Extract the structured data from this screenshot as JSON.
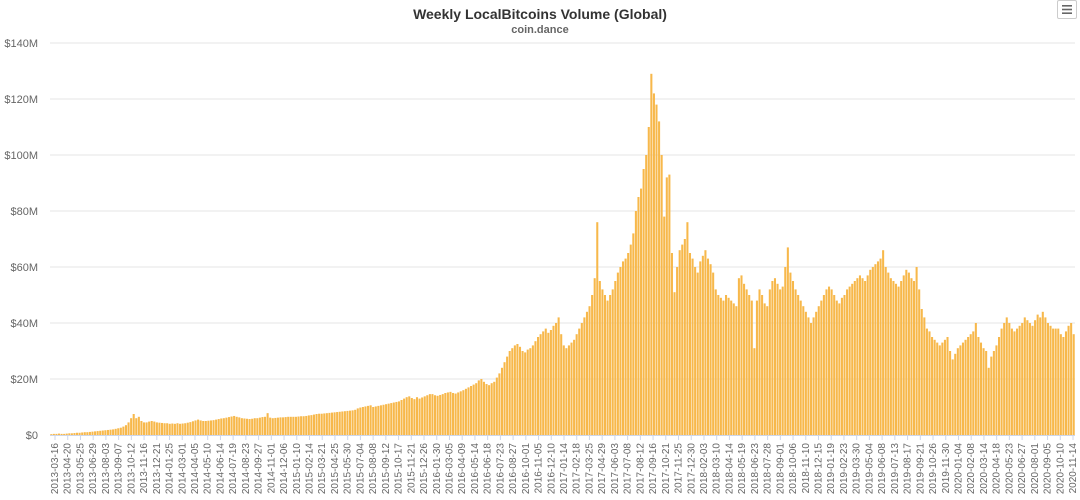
{
  "chart_data": {
    "type": "bar",
    "title": "Weekly LocalBitcoins Volume (Global)",
    "subtitle": "coin.dance",
    "xlabel": "",
    "ylabel": "",
    "ylim": [
      0,
      140000000
    ],
    "y_ticks": [
      "$0",
      "$20M",
      "$40M",
      "$60M",
      "$80M",
      "$100M",
      "$120M",
      "$140M"
    ],
    "grid": true,
    "legend": "none",
    "bar_color": "#f7b84b",
    "x_tick_labels": [
      "2013-03-16",
      "2013-04-20",
      "2013-05-25",
      "2013-06-29",
      "2013-08-03",
      "2013-09-07",
      "2013-10-12",
      "2013-11-16",
      "2013-12-21",
      "2014-01-25",
      "2014-03-01",
      "2014-04-05",
      "2014-05-10",
      "2014-06-14",
      "2014-07-19",
      "2014-08-23",
      "2014-09-27",
      "2014-11-01",
      "2014-12-06",
      "2015-01-10",
      "2015-02-14",
      "2015-03-21",
      "2015-04-25",
      "2015-05-30",
      "2015-07-04",
      "2015-08-08",
      "2015-09-12",
      "2015-10-17",
      "2015-11-21",
      "2015-12-26",
      "2016-01-30",
      "2016-03-05",
      "2016-04-09",
      "2016-05-14",
      "2016-06-18",
      "2016-07-23",
      "2016-08-27",
      "2016-10-01",
      "2016-11-05",
      "2016-12-10",
      "2017-01-14",
      "2017-02-18",
      "2017-03-25",
      "2017-04-29",
      "2017-06-03",
      "2017-07-08",
      "2017-08-12",
      "2017-09-16",
      "2017-10-21",
      "2017-11-25",
      "2017-12-30",
      "2018-02-03",
      "2018-03-10",
      "2018-04-14",
      "2018-05-19",
      "2018-06-23",
      "2018-07-28",
      "2018-09-01",
      "2018-10-06",
      "2018-11-10",
      "2018-12-15",
      "2019-01-19",
      "2019-02-23",
      "2019-03-30",
      "2019-05-04",
      "2019-06-08",
      "2019-07-13",
      "2019-08-17",
      "2019-09-21",
      "2019-10-26",
      "2019-11-30",
      "2020-01-04",
      "2020-02-08",
      "2020-03-14",
      "2020-04-18",
      "2020-05-23",
      "2020-06-27",
      "2020-08-01",
      "2020-09-05",
      "2020-10-10",
      "2020-11-14"
    ],
    "weekly_values_millions": [
      0.3,
      0.4,
      0.4,
      0.5,
      0.4,
      0.4,
      0.5,
      0.6,
      0.6,
      0.7,
      0.8,
      0.8,
      0.9,
      1.0,
      1.0,
      1.1,
      1.2,
      1.3,
      1.4,
      1.5,
      1.6,
      1.7,
      1.8,
      1.9,
      2.0,
      2.2,
      2.4,
      2.6,
      3.0,
      3.5,
      4.5,
      6.0,
      7.5,
      6.0,
      6.5,
      5.0,
      4.5,
      4.5,
      4.8,
      5.0,
      4.8,
      4.5,
      4.4,
      4.3,
      4.2,
      4.2,
      4.0,
      4.1,
      4.0,
      4.2,
      4.0,
      4.1,
      4.2,
      4.4,
      4.6,
      4.9,
      5.2,
      5.5,
      5.2,
      5.0,
      5.0,
      5.1,
      5.2,
      5.3,
      5.5,
      5.7,
      5.9,
      6.0,
      6.2,
      6.4,
      6.6,
      6.8,
      6.5,
      6.3,
      6.0,
      5.9,
      5.8,
      5.7,
      5.8,
      6.0,
      6.0,
      6.2,
      6.4,
      6.5,
      7.8,
      6.2,
      6.0,
      6.1,
      6.2,
      6.3,
      6.3,
      6.4,
      6.5,
      6.5,
      6.5,
      6.5,
      6.6,
      6.7,
      6.7,
      6.8,
      7.0,
      7.1,
      7.3,
      7.5,
      7.6,
      7.6,
      7.7,
      7.8,
      7.9,
      8.0,
      8.1,
      8.2,
      8.3,
      8.4,
      8.5,
      8.6,
      8.7,
      8.8,
      9.0,
      9.5,
      9.8,
      10.0,
      10.2,
      10.4,
      10.6,
      10.0,
      10.2,
      10.4,
      10.6,
      10.8,
      11.0,
      11.2,
      11.4,
      11.6,
      11.8,
      12.0,
      12.5,
      13.0,
      13.5,
      13.8,
      13.2,
      12.8,
      13.5,
      13.0,
      13.4,
      13.8,
      14.2,
      14.6,
      14.6,
      14.2,
      14.0,
      14.3,
      14.6,
      15.0,
      15.2,
      15.4,
      15.0,
      14.8,
      15.2,
      15.6,
      16.0,
      16.5,
      17.0,
      17.5,
      18.0,
      18.5,
      19.5,
      20.0,
      19.0,
      18.2,
      17.8,
      18.5,
      19.0,
      20.5,
      22.0,
      24.0,
      26.0,
      28.0,
      30.0,
      31.0,
      32.0,
      32.5,
      31.5,
      30.0,
      29.5,
      30.5,
      31.0,
      32.0,
      33.5,
      35.0,
      36.0,
      37.0,
      38.0,
      36.5,
      37.5,
      39.0,
      40.0,
      42.0,
      36.0,
      32.0,
      31.0,
      32.0,
      33.0,
      34.0,
      36.0,
      38.0,
      40.0,
      42.0,
      44.0,
      46.0,
      50.0,
      56.0,
      76.0,
      55.0,
      52.0,
      50.0,
      48.0,
      50.0,
      52.0,
      55.0,
      58.0,
      60.0,
      62.0,
      63.0,
      65.0,
      68.0,
      72.0,
      80.0,
      85.0,
      88.0,
      95.0,
      100.0,
      110.0,
      129.0,
      122.0,
      118.0,
      112.0,
      100.0,
      78.0,
      92.0,
      93.0,
      65.0,
      51.0,
      60.0,
      66.0,
      68.0,
      70.0,
      76.0,
      65.0,
      63.0,
      60.0,
      58.0,
      62.0,
      64.0,
      66.0,
      63.0,
      61.0,
      58.0,
      52.0,
      50.0,
      49.0,
      48.0,
      50.0,
      49.0,
      48.0,
      47.0,
      46.0,
      56.0,
      57.0,
      54.0,
      52.0,
      50.0,
      48.0,
      31.0,
      48.0,
      52.0,
      50.0,
      47.0,
      46.0,
      52.0,
      55.0,
      56.0,
      54.0,
      52.0,
      53.0,
      60.0,
      67.0,
      58.0,
      55.0,
      52.0,
      50.0,
      48.0,
      46.0,
      44.0,
      42.0,
      40.0,
      42.0,
      44.0,
      46.0,
      48.0,
      50.0,
      52.0,
      53.0,
      52.0,
      50.0,
      48.0,
      47.0,
      49.0,
      50.0,
      52.0,
      53.0,
      54.0,
      55.0,
      56.0,
      57.0,
      56.0,
      55.0,
      57.0,
      59.0,
      60.0,
      61.0,
      62.0,
      63.0,
      66.0,
      60.0,
      58.0,
      56.0,
      55.0,
      54.0,
      53.0,
      55.0,
      57.0,
      59.0,
      58.0,
      56.0,
      55.0,
      60.0,
      52.0,
      45.0,
      42.0,
      38.0,
      37.0,
      35.0,
      34.0,
      33.0,
      32.0,
      33.0,
      34.0,
      35.0,
      30.0,
      27.0,
      29.0,
      31.0,
      32.0,
      33.0,
      34.0,
      35.0,
      36.0,
      37.0,
      40.0,
      35.0,
      33.0,
      31.0,
      30.0,
      24.0,
      28.0,
      30.0,
      32.0,
      35.0,
      38.0,
      40.0,
      42.0,
      40.0,
      38.0,
      37.0,
      38.0,
      39.0,
      40.0,
      42.0,
      41.0,
      40.0,
      39.0,
      41.0,
      43.0,
      42.0,
      44.0,
      42.0,
      40.0,
      39.0,
      38.0,
      38.0,
      38.0,
      36.0,
      35.0,
      37.0,
      39.0,
      40.0,
      36.0
    ]
  },
  "ui": {
    "menu_icon": "hamburger-menu-icon",
    "watermark": "coin.dance"
  }
}
